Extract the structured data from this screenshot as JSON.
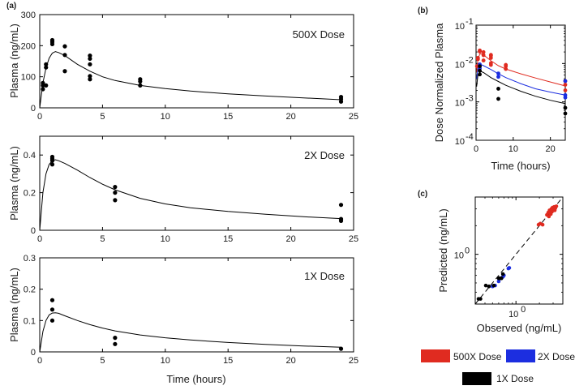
{
  "panels": [
    {
      "id": "a",
      "label": "(a)"
    },
    {
      "id": "b",
      "label": "(b)"
    },
    {
      "id": "c",
      "label": "(c)"
    }
  ],
  "chart_data": [
    {
      "id": "a1",
      "type": "scatter",
      "annotation": "500X Dose",
      "xlabel": "",
      "ylabel": "Plasma (ng/mL)",
      "xlim": [
        0,
        25
      ],
      "ylim": [
        0,
        300
      ],
      "xticks": [
        0,
        5,
        10,
        15,
        20,
        25
      ],
      "yticks": [
        0,
        100,
        200,
        300
      ],
      "tick_labels_x": [
        "0",
        "5",
        "10",
        "15",
        "20",
        "25"
      ],
      "tick_labels_y": [
        "0",
        "100",
        "200",
        "300"
      ],
      "points": [
        [
          0.25,
          60
        ],
        [
          0.25,
          72
        ],
        [
          0.25,
          80
        ],
        [
          0.5,
          72
        ],
        [
          0.5,
          130
        ],
        [
          0.5,
          140
        ],
        [
          1,
          205
        ],
        [
          1,
          212
        ],
        [
          1,
          218
        ],
        [
          2,
          118
        ],
        [
          2,
          170
        ],
        [
          2,
          198
        ],
        [
          4,
          92
        ],
        [
          4,
          102
        ],
        [
          4,
          140
        ],
        [
          4,
          158
        ],
        [
          4,
          168
        ],
        [
          8,
          72
        ],
        [
          8,
          85
        ],
        [
          8,
          92
        ],
        [
          24,
          20
        ],
        [
          24,
          28
        ],
        [
          24,
          35
        ]
      ],
      "curve": [
        [
          0,
          0
        ],
        [
          0.25,
          80
        ],
        [
          0.5,
          128
        ],
        [
          0.75,
          160
        ],
        [
          1,
          176
        ],
        [
          1.25,
          181
        ],
        [
          1.5,
          178
        ],
        [
          2,
          168
        ],
        [
          3,
          140
        ],
        [
          4,
          118
        ],
        [
          5,
          100
        ],
        [
          6,
          88
        ],
        [
          8,
          72
        ],
        [
          10,
          62
        ],
        [
          12,
          54
        ],
        [
          15,
          45
        ],
        [
          18,
          38
        ],
        [
          21,
          32
        ],
        [
          24,
          26
        ]
      ]
    },
    {
      "id": "a2",
      "type": "scatter",
      "annotation": "2X Dose",
      "xlabel": "",
      "ylabel": "Plasma (ng/mL)",
      "xlim": [
        0,
        25
      ],
      "ylim": [
        0,
        0.5
      ],
      "xticks": [
        0,
        5,
        10,
        15,
        20,
        25
      ],
      "yticks": [
        0,
        0.2,
        0.4
      ],
      "tick_labels_x": [
        "0",
        "5",
        "10",
        "15",
        "20",
        "25"
      ],
      "tick_labels_y": [
        "0",
        "0.2",
        "0.4"
      ],
      "points": [
        [
          1,
          0.35
        ],
        [
          1,
          0.37
        ],
        [
          1,
          0.38
        ],
        [
          1,
          0.39
        ],
        [
          6,
          0.16
        ],
        [
          6,
          0.2
        ],
        [
          6,
          0.23
        ],
        [
          24,
          0.05
        ],
        [
          24,
          0.06
        ],
        [
          24,
          0.135
        ]
      ],
      "curve": [
        [
          0,
          0
        ],
        [
          0.25,
          0.2
        ],
        [
          0.5,
          0.3
        ],
        [
          0.75,
          0.35
        ],
        [
          1,
          0.37
        ],
        [
          1.25,
          0.375
        ],
        [
          1.5,
          0.37
        ],
        [
          2,
          0.355
        ],
        [
          3,
          0.32
        ],
        [
          4,
          0.28
        ],
        [
          5,
          0.245
        ],
        [
          6,
          0.215
        ],
        [
          8,
          0.17
        ],
        [
          10,
          0.14
        ],
        [
          12,
          0.12
        ],
        [
          15,
          0.1
        ],
        [
          18,
          0.085
        ],
        [
          21,
          0.072
        ],
        [
          24,
          0.062
        ]
      ]
    },
    {
      "id": "a3",
      "type": "scatter",
      "annotation": "1X Dose",
      "xlabel": "Time (hours)",
      "ylabel": "Plasma (ng/mL)",
      "xlim": [
        0,
        25
      ],
      "ylim": [
        0,
        0.3
      ],
      "xticks": [
        0,
        5,
        10,
        15,
        20,
        25
      ],
      "yticks": [
        0,
        0.1,
        0.2,
        0.3
      ],
      "tick_labels_x": [
        "0",
        "5",
        "10",
        "15",
        "20",
        "25"
      ],
      "tick_labels_y": [
        "0",
        "0.1",
        "0.2",
        "0.3"
      ],
      "points": [
        [
          1,
          0.1
        ],
        [
          1,
          0.135
        ],
        [
          1,
          0.165
        ],
        [
          6,
          0.025
        ],
        [
          6,
          0.045
        ],
        [
          24,
          0.01
        ]
      ],
      "curve": [
        [
          0,
          0
        ],
        [
          0.25,
          0.065
        ],
        [
          0.5,
          0.1
        ],
        [
          0.75,
          0.118
        ],
        [
          1,
          0.124
        ],
        [
          1.25,
          0.125
        ],
        [
          1.5,
          0.123
        ],
        [
          2,
          0.115
        ],
        [
          3,
          0.1
        ],
        [
          4,
          0.087
        ],
        [
          5,
          0.076
        ],
        [
          6,
          0.067
        ],
        [
          8,
          0.054
        ],
        [
          10,
          0.045
        ],
        [
          12,
          0.038
        ],
        [
          15,
          0.03
        ],
        [
          18,
          0.024
        ],
        [
          21,
          0.019
        ],
        [
          24,
          0.015
        ]
      ]
    },
    {
      "id": "b",
      "type": "line",
      "xlabel": "Time (hours)",
      "ylabel": "Dose Normalized Plasma",
      "xlim": [
        0,
        24
      ],
      "yscale": "log",
      "ylim": [
        0.0001,
        0.1
      ],
      "xticks": [
        0,
        10,
        20
      ],
      "yticks": [
        0.0001,
        0.001,
        0.01,
        0.1
      ],
      "tick_labels_x": [
        "0",
        "10",
        "20"
      ],
      "tick_labels_y": [
        {
          "base": "10",
          "exp": "-4"
        },
        {
          "base": "10",
          "exp": "-3"
        },
        {
          "base": "10",
          "exp": "-2"
        },
        {
          "base": "10",
          "exp": "-1"
        }
      ],
      "series": [
        {
          "name": "500X Dose",
          "color": "#e02b20",
          "points": [
            [
              0.25,
              0.0085
            ],
            [
              0.5,
              0.013
            ],
            [
              0.5,
              0.014
            ],
            [
              1,
              0.0205
            ],
            [
              1,
              0.0212
            ],
            [
              1,
              0.0218
            ],
            [
              2,
              0.012
            ],
            [
              2,
              0.0165
            ],
            [
              2,
              0.0198
            ],
            [
              4,
              0.0092
            ],
            [
              4,
              0.0102
            ],
            [
              4,
              0.014
            ],
            [
              4,
              0.016
            ],
            [
              4,
              0.0168
            ],
            [
              8,
              0.0072
            ],
            [
              8,
              0.0085
            ],
            [
              8,
              0.0092
            ],
            [
              24,
              0.002
            ],
            [
              24,
              0.0028
            ],
            [
              24,
              0.0035
            ]
          ],
          "curve": [
            [
              0.15,
              0.006
            ],
            [
              0.5,
              0.013
            ],
            [
              1,
              0.0176
            ],
            [
              1.5,
              0.0178
            ],
            [
              2,
              0.0168
            ],
            [
              4,
              0.0118
            ],
            [
              6,
              0.0088
            ],
            [
              8,
              0.0072
            ],
            [
              12,
              0.0054
            ],
            [
              16,
              0.0042
            ],
            [
              20,
              0.0033
            ],
            [
              24,
              0.0026
            ]
          ]
        },
        {
          "name": "2X Dose",
          "color": "#1c2ee0",
          "points": [
            [
              1,
              0.0075
            ],
            [
              1,
              0.0085
            ],
            [
              1,
              0.0095
            ],
            [
              6,
              0.0045
            ],
            [
              6,
              0.0055
            ],
            [
              24,
              0.0013
            ],
            [
              24,
              0.0015
            ],
            [
              24,
              0.0035
            ]
          ],
          "curve": [
            [
              0.15,
              0.004
            ],
            [
              0.5,
              0.0075
            ],
            [
              1,
              0.0093
            ],
            [
              1.5,
              0.0092
            ],
            [
              2,
              0.0088
            ],
            [
              4,
              0.007
            ],
            [
              6,
              0.0054
            ],
            [
              8,
              0.0043
            ],
            [
              12,
              0.003
            ],
            [
              16,
              0.0022
            ],
            [
              20,
              0.0018
            ],
            [
              24,
              0.0015
            ]
          ]
        },
        {
          "name": "1X Dose",
          "color": "#000000",
          "points": [
            [
              1,
              0.0052
            ],
            [
              1,
              0.0065
            ],
            [
              1,
              0.0085
            ],
            [
              6,
              0.0012
            ],
            [
              6,
              0.0022
            ],
            [
              24,
              0.0005
            ],
            [
              24,
              0.0007
            ]
          ],
          "curve": [
            [
              0.15,
              0.0025
            ],
            [
              0.5,
              0.005
            ],
            [
              1,
              0.0062
            ],
            [
              1.5,
              0.0061
            ],
            [
              2,
              0.0058
            ],
            [
              4,
              0.0043
            ],
            [
              6,
              0.0034
            ],
            [
              8,
              0.0027
            ],
            [
              12,
              0.0019
            ],
            [
              16,
              0.0014
            ],
            [
              20,
              0.0011
            ],
            [
              24,
              0.0009
            ]
          ]
        }
      ]
    },
    {
      "id": "c",
      "type": "scatter",
      "xlabel": "Observed (ng/mL)",
      "ylabel": "Predicted (ng/mL)",
      "xscale": "log",
      "yscale": "log",
      "xlim": [
        0.3,
        4
      ],
      "ylim": [
        0.3,
        4
      ],
      "xticks": [
        1
      ],
      "yticks": [
        1
      ],
      "tick_labels_x": [
        {
          "base": "10",
          "exp": "0"
        }
      ],
      "tick_labels_y": [
        {
          "base": "10",
          "exp": "0"
        }
      ],
      "identity_line": true,
      "series": [
        {
          "name": "500X Dose",
          "color": "#e02b20",
          "points": [
            [
              1.95,
              2.05
            ],
            [
              2.05,
              2.1
            ],
            [
              2.2,
              2.05
            ],
            [
              2.5,
              2.6
            ],
            [
              2.6,
              2.75
            ],
            [
              2.65,
              2.5
            ],
            [
              2.7,
              2.9
            ],
            [
              2.8,
              2.65
            ],
            [
              2.85,
              3.0
            ],
            [
              2.9,
              2.8
            ],
            [
              2.95,
              3.1
            ],
            [
              3.0,
              2.95
            ],
            [
              3.1,
              3.15
            ],
            [
              3.15,
              2.9
            ],
            [
              3.2,
              3.05
            ],
            [
              3.3,
              3.2
            ]
          ]
        },
        {
          "name": "2X Dose",
          "color": "#1c2ee0",
          "points": [
            [
              0.5,
              0.46
            ],
            [
              0.54,
              0.47
            ],
            [
              0.6,
              0.52
            ],
            [
              0.65,
              0.56
            ],
            [
              0.68,
              0.58
            ],
            [
              0.7,
              0.6
            ],
            [
              0.8,
              0.71
            ],
            [
              0.82,
              0.72
            ]
          ]
        },
        {
          "name": "1X Dose",
          "color": "#000000",
          "points": [
            [
              0.33,
              0.34
            ],
            [
              0.35,
              0.34
            ],
            [
              0.41,
              0.47
            ],
            [
              0.45,
              0.46
            ],
            [
              0.52,
              0.47
            ],
            [
              0.6,
              0.56
            ],
            [
              0.62,
              0.56
            ],
            [
              0.65,
              0.56
            ],
            [
              0.68,
              0.62
            ]
          ]
        }
      ]
    }
  ],
  "legend": [
    {
      "label": "500X Dose",
      "color": "#e02b20"
    },
    {
      "label": "2X Dose",
      "color": "#1c2ee0"
    },
    {
      "label": "1X Dose",
      "color": "#000000"
    }
  ]
}
